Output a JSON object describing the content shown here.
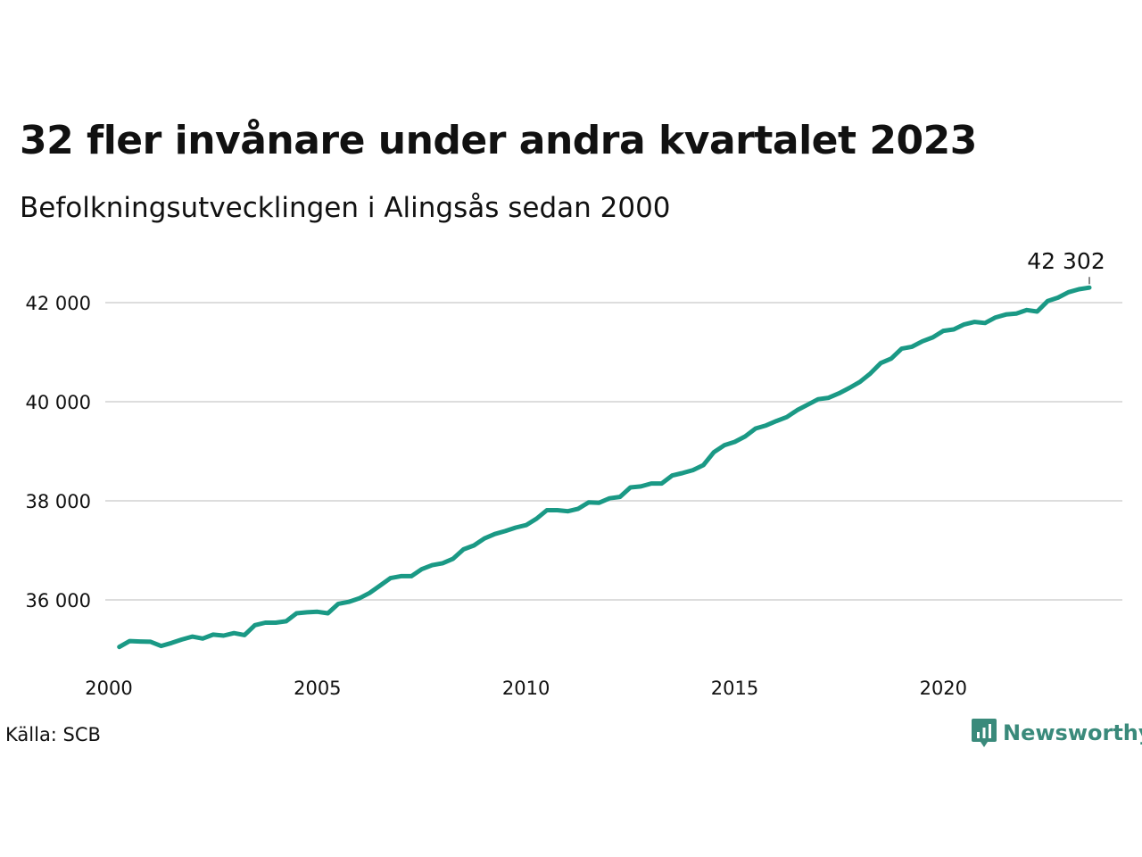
{
  "chart_data": {
    "type": "line",
    "title": "32 fler invånare under andra kvartalet 2023",
    "subtitle": "Befolkningsutvecklingen i Alingsås sedan 2000",
    "xlabel": "",
    "ylabel": "",
    "xlim": [
      2000,
      2024.5
    ],
    "ylim": [
      34600,
      43000
    ],
    "x_ticks": [
      2000,
      2005,
      2010,
      2015,
      2020
    ],
    "x_tick_labels": [
      "2000",
      "2005",
      "2010",
      "2015",
      "2020"
    ],
    "y_ticks": [
      36000,
      38000,
      40000,
      42000
    ],
    "y_tick_labels": [
      "36 000",
      "38 000",
      "40 000",
      "42 000"
    ],
    "grid": "horizontal",
    "line_color": "#1a9985",
    "last_value_label": "42 302",
    "x": [
      2000.25,
      2000.5,
      2000.75,
      2001,
      2001.25,
      2001.5,
      2001.75,
      2002,
      2002.25,
      2002.5,
      2002.75,
      2003,
      2003.25,
      2003.5,
      2003.75,
      2004,
      2004.25,
      2004.5,
      2004.75,
      2005,
      2005.25,
      2005.5,
      2005.75,
      2006,
      2006.25,
      2006.5,
      2006.75,
      2007,
      2007.25,
      2007.5,
      2007.75,
      2008,
      2008.25,
      2008.5,
      2008.75,
      2009,
      2009.25,
      2009.5,
      2009.75,
      2010,
      2010.25,
      2010.5,
      2010.75,
      2011,
      2011.25,
      2011.5,
      2011.75,
      2012,
      2012.25,
      2012.5,
      2012.75,
      2013,
      2013.25,
      2013.5,
      2013.75,
      2014,
      2014.25,
      2014.5,
      2014.75,
      2015,
      2015.25,
      2015.5,
      2015.75,
      2016,
      2016.25,
      2016.5,
      2016.75,
      2017,
      2017.25,
      2017.5,
      2017.75,
      2018,
      2018.25,
      2018.5,
      2018.75,
      2019,
      2019.25,
      2019.5,
      2019.75,
      2020,
      2020.25,
      2020.5,
      2020.75,
      2021,
      2021.25,
      2021.5,
      2021.75,
      2022,
      2022.25,
      2022.5,
      2022.75,
      2023,
      2023.25,
      2023.5
    ],
    "values": [
      35050,
      35170,
      35160,
      35155,
      35070,
      35130,
      35200,
      35260,
      35220,
      35300,
      35280,
      35330,
      35290,
      35490,
      35540,
      35540,
      35570,
      35730,
      35750,
      35760,
      35730,
      35920,
      35960,
      36030,
      36140,
      36290,
      36440,
      36480,
      36480,
      36620,
      36700,
      36740,
      36830,
      37020,
      37100,
      37240,
      37330,
      37390,
      37460,
      37510,
      37640,
      37810,
      37810,
      37790,
      37840,
      37970,
      37960,
      38050,
      38080,
      38270,
      38290,
      38350,
      38350,
      38510,
      38560,
      38620,
      38720,
      38980,
      39120,
      39190,
      39300,
      39460,
      39520,
      39610,
      39690,
      39830,
      39940,
      40050,
      40080,
      40170,
      40280,
      40400,
      40570,
      40780,
      40870,
      41070,
      41110,
      41220,
      41300,
      41430,
      41460,
      41560,
      41610,
      41590,
      41700,
      41760,
      41780,
      41850,
      41820,
      42030,
      42100,
      42210,
      42270,
      42302
    ]
  },
  "source": "Källa: SCB",
  "brand": {
    "name": "Newsworthy",
    "logo_icon": "bar-chart-speech-bubble-icon",
    "color": "#3a8a7b"
  }
}
